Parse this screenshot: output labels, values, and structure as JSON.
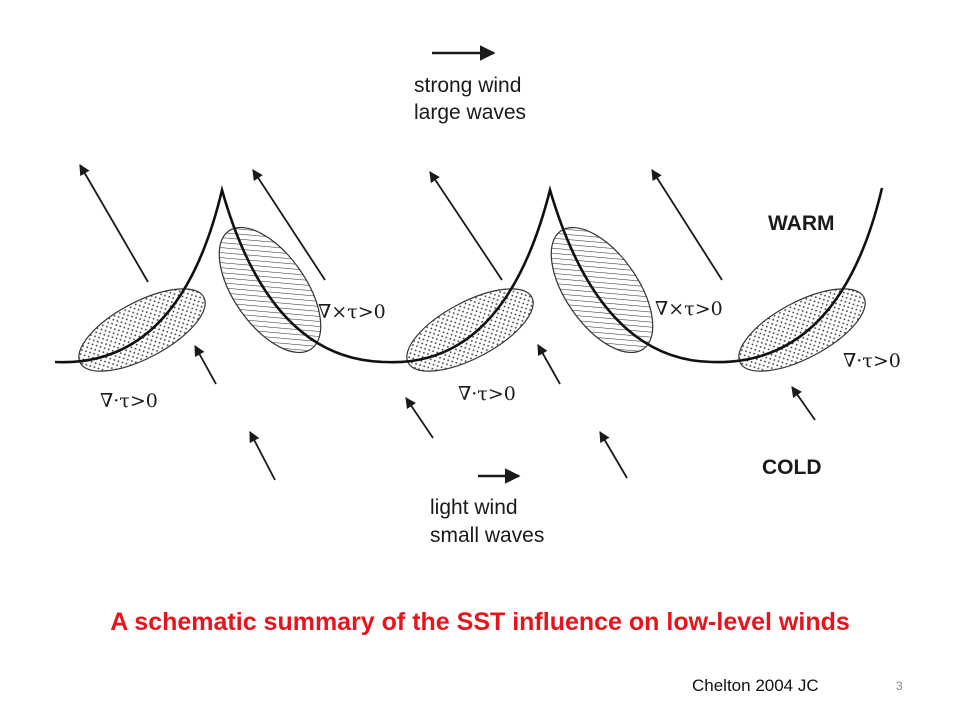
{
  "diagram": {
    "top_label": {
      "line1": "strong wind",
      "line2": "large waves"
    },
    "bottom_label": {
      "line1": "light wind",
      "line2": "small waves"
    },
    "warm_label": "WARM",
    "cold_label": "COLD",
    "curl_labels": [
      "∇×τ>0",
      "∇×τ>0"
    ],
    "div_labels": [
      "∇·τ>0",
      "∇·τ>0",
      "∇·τ>0"
    ]
  },
  "caption": "A schematic summary of the SST influence on low-level winds",
  "citation": "Chelton 2004  JC",
  "slide_number": "3"
}
